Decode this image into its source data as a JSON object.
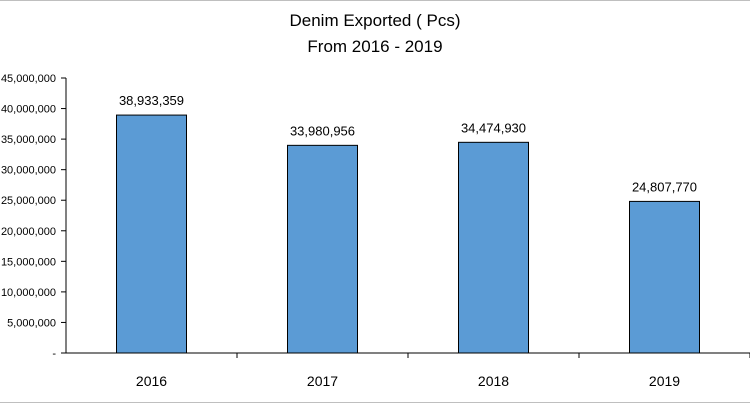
{
  "chart_data": {
    "type": "bar",
    "title": "Denim Exported ( Pcs)",
    "subtitle": "From 2016 - 2019",
    "categories": [
      "2016",
      "2017",
      "2018",
      "2019"
    ],
    "values": [
      38933359,
      33980956,
      34474930,
      24807770
    ],
    "data_labels": [
      "38,933,359",
      "33,980,956",
      "34,474,930",
      "24,807,770"
    ],
    "ylim": [
      0,
      45000000
    ],
    "ytick_values": [
      0,
      5000000,
      10000000,
      15000000,
      20000000,
      25000000,
      30000000,
      35000000,
      40000000,
      45000000
    ],
    "ytick_labels": [
      "-",
      "5,000,000",
      "10,000,000",
      "15,000,000",
      "20,000,000",
      "25,000,000",
      "30,000,000",
      "35,000,000",
      "40,000,000",
      "45,000,000"
    ],
    "grid": false,
    "legend": "none",
    "bar_color": "#5b9bd5",
    "bar_edge_color": "#000000"
  }
}
